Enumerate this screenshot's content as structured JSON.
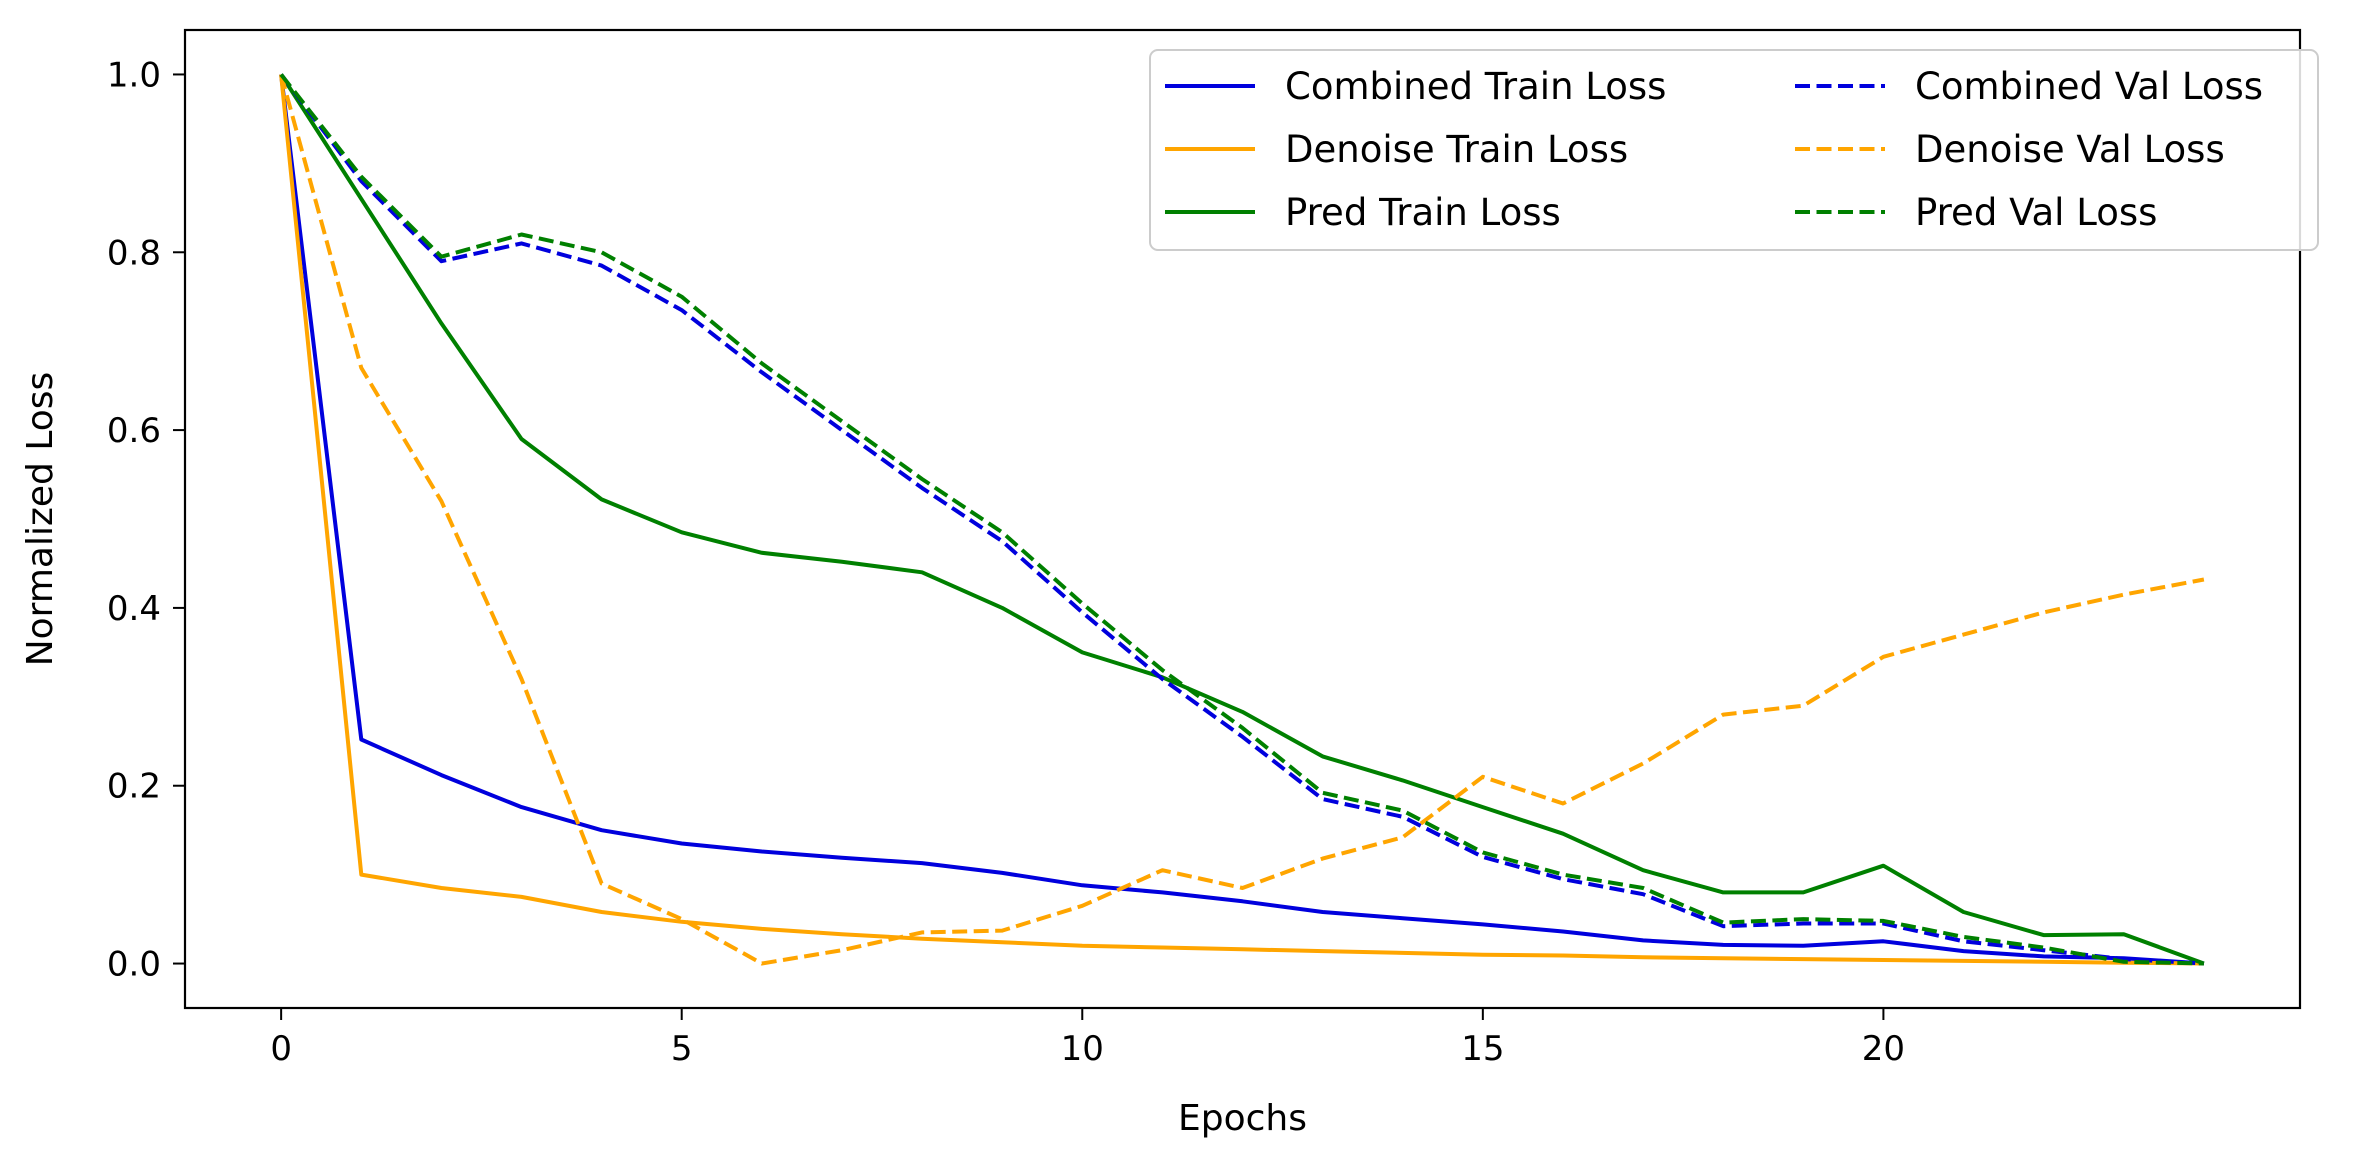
{
  "chart_data": {
    "type": "line",
    "title": "",
    "xlabel": "Epochs",
    "ylabel": "Normalized Loss",
    "xlim": [
      -1.2,
      25.2
    ],
    "ylim": [
      -0.05,
      1.05
    ],
    "x_ticks": [
      0,
      5,
      10,
      15,
      20
    ],
    "x_tick_labels": [
      "0",
      "5",
      "10",
      "15",
      "20"
    ],
    "y_ticks": [
      0.0,
      0.2,
      0.4,
      0.6,
      0.8,
      1.0
    ],
    "y_tick_labels": [
      "0.0",
      "0.2",
      "0.4",
      "0.6",
      "0.8",
      "1.0"
    ],
    "grid": false,
    "legend": {
      "placement": "top-right",
      "columns": 2
    },
    "x": [
      0,
      1,
      2,
      3,
      4,
      5,
      6,
      7,
      8,
      9,
      10,
      11,
      12,
      13,
      14,
      15,
      16,
      17,
      18,
      19,
      20,
      21,
      22,
      23,
      24
    ],
    "series": [
      {
        "name": "Combined Train Loss",
        "color": "#0000dd",
        "style": "solid",
        "values": [
          1.0,
          0.252,
          0.212,
          0.176,
          0.15,
          0.135,
          0.126,
          0.119,
          0.113,
          0.102,
          0.088,
          0.08,
          0.07,
          0.058,
          0.051,
          0.044,
          0.036,
          0.026,
          0.021,
          0.02,
          0.025,
          0.014,
          0.008,
          0.006,
          0.0
        ]
      },
      {
        "name": "Denoise Train Loss",
        "color": "#ffa500",
        "style": "solid",
        "values": [
          1.0,
          0.1,
          0.085,
          0.075,
          0.058,
          0.047,
          0.039,
          0.033,
          0.028,
          0.024,
          0.02,
          0.018,
          0.016,
          0.014,
          0.012,
          0.01,
          0.009,
          0.007,
          0.006,
          0.005,
          0.004,
          0.003,
          0.002,
          0.001,
          0.0
        ]
      },
      {
        "name": "Pred Train Loss",
        "color": "#008000",
        "style": "solid",
        "values": [
          1.0,
          0.86,
          0.72,
          0.59,
          0.522,
          0.485,
          0.462,
          0.452,
          0.44,
          0.4,
          0.35,
          0.322,
          0.283,
          0.233,
          0.206,
          0.176,
          0.146,
          0.105,
          0.08,
          0.08,
          0.11,
          0.058,
          0.032,
          0.033,
          0.0
        ]
      },
      {
        "name": "Combined Val Loss",
        "color": "#0000dd",
        "style": "dashed",
        "values": [
          1.0,
          0.88,
          0.79,
          0.81,
          0.785,
          0.735,
          0.665,
          0.6,
          0.535,
          0.475,
          0.395,
          0.32,
          0.255,
          0.185,
          0.165,
          0.12,
          0.095,
          0.078,
          0.042,
          0.045,
          0.045,
          0.025,
          0.015,
          0.005,
          0.0
        ]
      },
      {
        "name": "Denoise Val Loss",
        "color": "#ffa500",
        "style": "dashed",
        "values": [
          1.0,
          0.67,
          0.52,
          0.32,
          0.09,
          0.05,
          0.0,
          0.015,
          0.035,
          0.037,
          0.065,
          0.105,
          0.085,
          0.118,
          0.142,
          0.21,
          0.18,
          0.225,
          0.28,
          0.29,
          0.345,
          0.37,
          0.395,
          0.415,
          0.432
        ]
      },
      {
        "name": "Pred Val Loss",
        "color": "#008000",
        "style": "dashed",
        "values": [
          1.0,
          0.885,
          0.795,
          0.82,
          0.8,
          0.75,
          0.675,
          0.61,
          0.545,
          0.485,
          0.405,
          0.33,
          0.265,
          0.192,
          0.172,
          0.125,
          0.1,
          0.085,
          0.046,
          0.05,
          0.048,
          0.03,
          0.018,
          0.002,
          0.0
        ]
      }
    ]
  }
}
